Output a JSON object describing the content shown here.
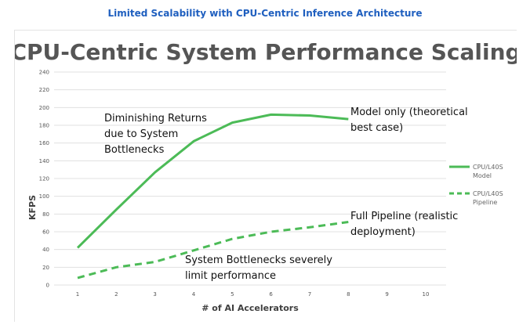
{
  "header": {
    "title": "Limited Scalability with CPU-Centric Inference Architecture"
  },
  "chart_data": {
    "type": "line",
    "title": "CPU-Centric System Performance Scaling",
    "xlabel": "# of AI Accelerators",
    "ylabel": "KFPS",
    "x": [
      1,
      2,
      3,
      4,
      5,
      6,
      7,
      8
    ],
    "xticks": [
      1,
      2,
      3,
      4,
      5,
      6,
      7,
      8,
      9,
      10
    ],
    "xlim": [
      1,
      10
    ],
    "ylim": [
      0,
      240
    ],
    "yticks": [
      0,
      20,
      40,
      60,
      80,
      100,
      120,
      140,
      160,
      180,
      200,
      220,
      240
    ],
    "grid": true,
    "legend_position": "right",
    "colors": {
      "series": "#4cbb57",
      "grid": "#e0e0e0",
      "header": "#1f5fbf"
    },
    "series": [
      {
        "name": "CPU/L40S Model",
        "legend_lines": [
          "CPU/L40S",
          "Model"
        ],
        "style": "solid",
        "values": [
          42,
          85,
          127,
          162,
          183,
          192,
          191,
          187
        ]
      },
      {
        "name": "CPU/L40S Pipeline",
        "legend_lines": [
          "CPU/L40S",
          "Pipeline"
        ],
        "style": "dashed",
        "values": [
          8,
          20,
          26,
          39,
          52,
          60,
          65,
          71
        ]
      }
    ],
    "annotations": [
      {
        "name": "annotation-diminishing-returns",
        "lines": [
          "Diminishing Returns",
          "due to System",
          "Bottlenecks"
        ]
      },
      {
        "name": "annotation-model-only",
        "lines": [
          "Model only (theoretical",
          "best case)"
        ]
      },
      {
        "name": "annotation-full-pipeline",
        "lines": [
          "Full Pipeline (realistic",
          "deployment)"
        ]
      },
      {
        "name": "annotation-system-bottlenecks",
        "lines": [
          "System Bottlenecks severely",
          "limit performance"
        ]
      }
    ]
  }
}
